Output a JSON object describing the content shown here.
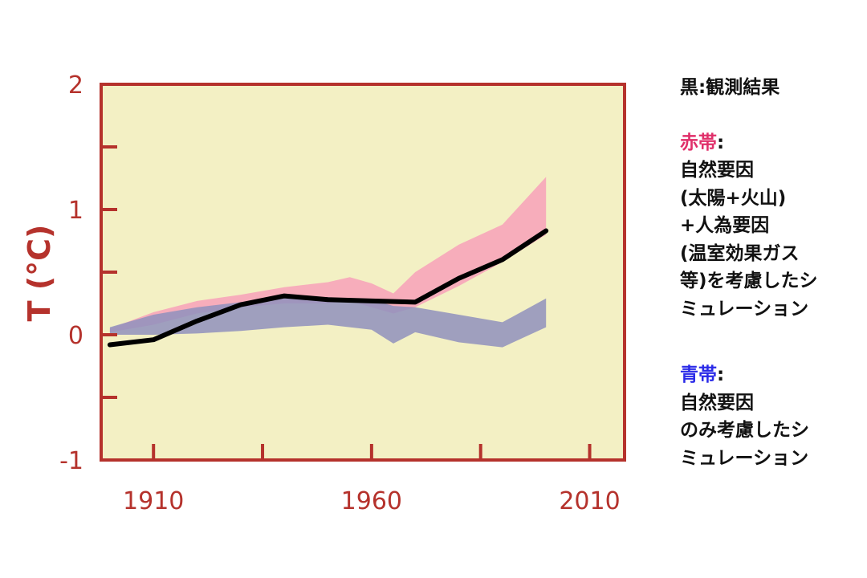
{
  "chart_data": {
    "type": "area",
    "ylabel": "T (°C)",
    "xlim": [
      1898,
      2018
    ],
    "ylim": [
      -1,
      2
    ],
    "x_ticks": [
      1910,
      1960,
      2010
    ],
    "x_minor_ticks": [
      1935,
      1985
    ],
    "y_ticks": [
      -1,
      0,
      1,
      2
    ],
    "y_ticks_labeled": [
      "-1",
      "0",
      "1",
      "2"
    ],
    "y_minor_ticks": [
      -0.5,
      0.5,
      1.5
    ],
    "x_tick_labels": [
      "1910",
      "1960",
      "2010"
    ],
    "series": [
      {
        "kind": "band",
        "color": "#f7a9bb",
        "x": [
          1900,
          1910,
          1920,
          1930,
          1940,
          1950,
          1955,
          1960,
          1965,
          1970,
          1980,
          1990,
          2000
        ],
        "lower": [
          0.02,
          0.08,
          0.17,
          0.22,
          0.25,
          0.25,
          0.27,
          0.22,
          0.17,
          0.22,
          0.39,
          0.58,
          0.8
        ],
        "upper": [
          0.05,
          0.18,
          0.27,
          0.32,
          0.38,
          0.42,
          0.46,
          0.41,
          0.33,
          0.5,
          0.72,
          0.88,
          1.26
        ]
      },
      {
        "kind": "band",
        "color": "#8f90bd",
        "x": [
          1900,
          1910,
          1920,
          1930,
          1940,
          1950,
          1955,
          1960,
          1965,
          1970,
          1980,
          1990,
          2000
        ],
        "lower": [
          0.0,
          0.0,
          0.01,
          0.03,
          0.06,
          0.08,
          0.06,
          0.04,
          -0.07,
          0.02,
          -0.06,
          -0.1,
          0.06
        ],
        "upper": [
          0.06,
          0.16,
          0.22,
          0.26,
          0.31,
          0.3,
          0.29,
          0.28,
          0.23,
          0.22,
          0.16,
          0.1,
          0.29
        ]
      },
      {
        "kind": "line",
        "color": "#000000",
        "x": [
          1900,
          1910,
          1920,
          1930,
          1940,
          1950,
          1960,
          1970,
          1980,
          1990,
          2000
        ],
        "values": [
          -0.08,
          -0.04,
          0.11,
          0.24,
          0.31,
          0.28,
          0.27,
          0.26,
          0.45,
          0.6,
          0.83
        ]
      }
    ],
    "background": "#f3f0c4",
    "frame_color": "#b5322c"
  },
  "legend": {
    "black_line": "黒:観測結果",
    "red_band_key": "赤帯",
    "red_band_colon": ":",
    "red_band_lines": [
      "自然要因",
      "(太陽+火山)",
      "+人為要因",
      "(温室効果ガス",
      "等)を考慮したシ",
      "ミュレーション"
    ],
    "blue_band_key": "青帯",
    "blue_band_colon": ":",
    "blue_band_lines": [
      "自然要因",
      "のみ考慮したシ",
      "ミュレーション"
    ]
  }
}
